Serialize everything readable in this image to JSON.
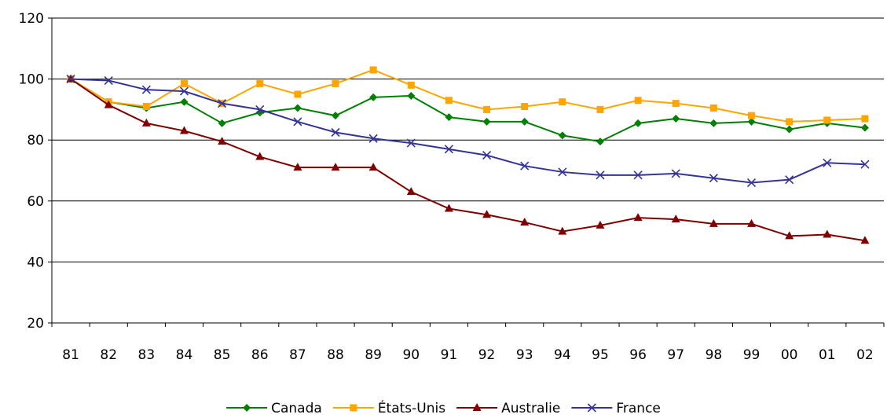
{
  "chart_data": {
    "type": "line",
    "categories": [
      "81",
      "82",
      "83",
      "84",
      "85",
      "86",
      "87",
      "88",
      "89",
      "90",
      "91",
      "92",
      "93",
      "94",
      "95",
      "96",
      "97",
      "98",
      "99",
      "00",
      "01",
      "02"
    ],
    "ylim": [
      20,
      120
    ],
    "yticks": [
      20,
      40,
      60,
      80,
      100,
      120
    ],
    "grid": true,
    "legend_position": "bottom",
    "series": [
      {
        "name": "Canada",
        "color": "#008000",
        "marker": "diamond",
        "values": [
          100,
          92.5,
          90.5,
          92.5,
          85.5,
          89,
          90.5,
          88,
          94,
          94.5,
          87.5,
          86,
          86,
          81.5,
          79.5,
          85.5,
          87,
          85.5,
          86,
          83.5,
          85.5,
          84
        ]
      },
      {
        "name": "États-Unis",
        "color": "#FFA500",
        "marker": "square",
        "values": [
          100,
          92.5,
          91,
          98.5,
          92,
          98.5,
          95,
          98.5,
          103,
          98,
          93,
          90,
          91,
          92.5,
          90,
          93,
          92,
          90.5,
          88,
          86,
          86.5,
          87
        ]
      },
      {
        "name": "Australie",
        "color": "#800000",
        "marker": "triangle",
        "values": [
          100,
          91.5,
          85.5,
          83,
          79.5,
          74.5,
          71,
          71,
          71,
          63,
          57.5,
          55.5,
          53,
          50,
          52,
          54.5,
          54,
          52.5,
          52.5,
          48.5,
          49,
          47
        ]
      },
      {
        "name": "France",
        "color": "#333399",
        "marker": "x",
        "values": [
          100,
          99.5,
          96.5,
          96,
          92,
          90,
          86,
          82.5,
          80.5,
          79,
          77,
          75,
          71.5,
          69.5,
          68.5,
          68.5,
          69,
          67.5,
          66,
          67,
          72.5,
          72
        ]
      }
    ]
  }
}
